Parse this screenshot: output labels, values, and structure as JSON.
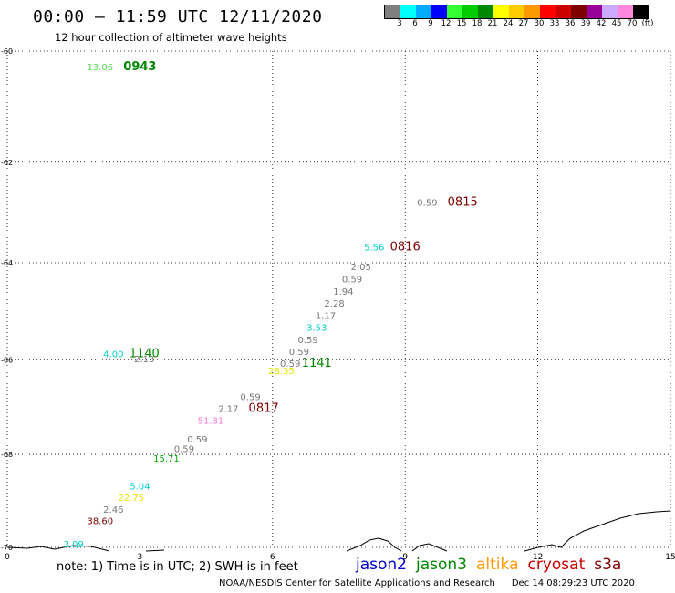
{
  "title": "00:00 – 11:59 UTC 12/11/2020",
  "subtitle": "12 hour collection of altimeter wave heights",
  "legend": {
    "colors": [
      "#7f7f7f",
      "#00ffff",
      "#00aaff",
      "#0000ff",
      "#33ff33",
      "#00cc00",
      "#008800",
      "#ffff00",
      "#ffcc00",
      "#ff9900",
      "#ff0000",
      "#cc0000",
      "#7f0000",
      "#990099",
      "#ccaaff",
      "#ff88dd",
      "#000000"
    ],
    "labels": [
      "3",
      "6",
      "9",
      "12",
      "15",
      "18",
      "21",
      "24",
      "27",
      "30",
      "33",
      "36",
      "39",
      "42",
      "45",
      "70",
      "(ft)"
    ]
  },
  "axes": {
    "x_ticks": [
      "0",
      "3",
      "6",
      "9",
      "12",
      "15"
    ],
    "y_ticks": [
      "-60",
      "-62",
      "-64",
      "-66",
      "-68",
      "-70"
    ],
    "x_range": [
      0,
      15
    ],
    "y_range": [
      -60,
      -70
    ]
  },
  "observations": [
    {
      "lon": 2.1,
      "lat": -60.3,
      "text": "13.06",
      "color": "#55dd55"
    },
    {
      "lon": 3.0,
      "lat": -60.3,
      "text": "0943",
      "color": "#008800",
      "bold": true,
      "size": 13
    },
    {
      "lon": 9.5,
      "lat": -62.85,
      "text": "0.59",
      "color": "#777777"
    },
    {
      "lon": 10.3,
      "lat": -62.85,
      "text": "0815",
      "color": "#7f0000",
      "size": 13
    },
    {
      "lon": 8.3,
      "lat": -63.75,
      "text": "5.56",
      "color": "#00cccc"
    },
    {
      "lon": 9.0,
      "lat": -63.75,
      "text": "0816",
      "color": "#7f0000",
      "size": 13
    },
    {
      "lon": 8.0,
      "lat": -64.15,
      "text": "2.05",
      "color": "#777777"
    },
    {
      "lon": 7.8,
      "lat": -64.4,
      "text": "0.59",
      "color": "#777777"
    },
    {
      "lon": 7.6,
      "lat": -64.65,
      "text": "1.94",
      "color": "#777777"
    },
    {
      "lon": 7.4,
      "lat": -64.9,
      "text": "2.28",
      "color": "#777777"
    },
    {
      "lon": 7.2,
      "lat": -65.15,
      "text": "1.17",
      "color": "#777777"
    },
    {
      "lon": 7.0,
      "lat": -65.4,
      "text": "3.53",
      "color": "#00cccc"
    },
    {
      "lon": 6.8,
      "lat": -65.65,
      "text": "0.59",
      "color": "#777777"
    },
    {
      "lon": 6.6,
      "lat": -65.9,
      "text": "0.59",
      "color": "#777777"
    },
    {
      "lon": 6.4,
      "lat": -66.15,
      "text": "0.59",
      "color": "#777777"
    },
    {
      "lon": 6.2,
      "lat": -66.3,
      "text": "28.35",
      "color": "#e6e600"
    },
    {
      "lon": 7.0,
      "lat": -66.15,
      "text": "1141",
      "color": "#008800",
      "size": 13
    },
    {
      "lon": 2.4,
      "lat": -65.95,
      "text": "4.00",
      "color": "#00cccc"
    },
    {
      "lon": 3.1,
      "lat": -65.95,
      "text": "1140",
      "color": "#008800",
      "size": 13
    },
    {
      "lon": 3.1,
      "lat": -66.05,
      "text": "2.13",
      "color": "#777777"
    },
    {
      "lon": 5.5,
      "lat": -66.85,
      "text": "0.59",
      "color": "#777777"
    },
    {
      "lon": 5.0,
      "lat": -67.1,
      "text": "2.17",
      "color": "#777777"
    },
    {
      "lon": 5.8,
      "lat": -67.1,
      "text": "0817",
      "color": "#7f0000",
      "size": 13
    },
    {
      "lon": 4.6,
      "lat": -67.35,
      "text": "51.31",
      "color": "#ff77dd"
    },
    {
      "lon": 4.3,
      "lat": -67.75,
      "text": "0.59",
      "color": "#777777"
    },
    {
      "lon": 4.0,
      "lat": -67.95,
      "text": "0.59",
      "color": "#777777"
    },
    {
      "lon": 3.6,
      "lat": -68.15,
      "text": "15.71",
      "color": "#00aa00"
    },
    {
      "lon": 3.0,
      "lat": -68.75,
      "text": "5.04",
      "color": "#00cccc"
    },
    {
      "lon": 2.8,
      "lat": -69.0,
      "text": "22.75",
      "color": "#e6e600"
    },
    {
      "lon": 2.4,
      "lat": -69.25,
      "text": "2.46",
      "color": "#777777"
    },
    {
      "lon": 2.1,
      "lat": -69.5,
      "text": "38.60",
      "color": "#7f0000"
    },
    {
      "lon": 1.5,
      "lat": -70.0,
      "text": "3.09",
      "color": "#00cccc"
    }
  ],
  "note": "note: 1) Time is in UTC; 2) SWH is in feet",
  "satellites": [
    {
      "name": "jason2",
      "color": "#0000cc"
    },
    {
      "name": "jason3",
      "color": "#008800"
    },
    {
      "name": "altika",
      "color": "#ff9900"
    },
    {
      "name": "cryosat",
      "color": "#cc0000"
    },
    {
      "name": "s3a",
      "color": "#7f0000"
    }
  ],
  "credit": "NOAA/NESDIS Center for Satellite Applications and Research",
  "timestamp": "Dec 14 08:29:23 UTC 2020"
}
